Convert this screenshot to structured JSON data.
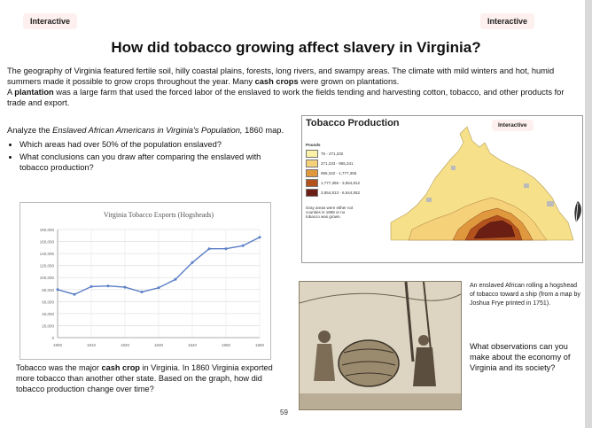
{
  "badges": {
    "top_left": "Interactive",
    "top_right": "Interactive",
    "map": "Interactive"
  },
  "title": "How did tobacco growing affect slavery in Virginia?",
  "intro": {
    "line1": "The geography of Virginia featured fertile soil, hilly coastal plains, forests, long rivers, and swampy areas.  The climate with mild winters and hot, humid summers made it possible to grow crops throughout the year.  Many ",
    "cash_crops": "cash crops",
    "line1_end": " were grown on plantations.",
    "a": "A ",
    "plantation": "plantation",
    "line2": " was a large farm that used the forced labor of the enslaved to work the fields tending and harvesting cotton, tobacco, and other products for trade and export."
  },
  "analyze": {
    "lead": "Analyze the ",
    "map_name": "Enslaved African Americans in Virginia's Population,",
    "lead_end": " 1860 map.",
    "questions": [
      "Which areas had over 50% of the population enslaved?",
      "What conclusions can you draw after comparing the enslaved with tobacco production?"
    ]
  },
  "chart_data": {
    "type": "line",
    "title": "Virginia Tobacco Exports (Hogsheads)",
    "x": [
      1800,
      1805,
      1810,
      1815,
      1820,
      1825,
      1830,
      1835,
      1840,
      1845,
      1850,
      1855,
      1860
    ],
    "values": [
      80000,
      72000,
      85000,
      86000,
      84000,
      76000,
      83000,
      97000,
      125000,
      148000,
      148000,
      153000,
      167000
    ],
    "xticks": [
      "1800",
      "1810",
      "1820",
      "1830",
      "1840",
      "1850",
      "1860"
    ],
    "yticks": [
      "0",
      "20,000",
      "40,000",
      "60,000",
      "80,000",
      "100,000",
      "120,000",
      "140,000",
      "160,000",
      "180,000"
    ],
    "ylim": [
      0,
      180000
    ],
    "grid": true,
    "color": "#5b7fc7"
  },
  "caption": {
    "a": "Tobacco was the major ",
    "b": "cash crop",
    "c": " in Virginia. In 1860 Virginia exported more tobacco than another other state. Based on the graph, how did tobacco production change over time?"
  },
  "page_number": "59",
  "map": {
    "title": "Tobacco Production",
    "legend_title": "Pounds",
    "legend": [
      {
        "label": "75 - 271,232",
        "color": "#fbf2a8"
      },
      {
        "label": "271,233 - 955,341",
        "color": "#f5d27a"
      },
      {
        "label": "955,342 - 1,777,355",
        "color": "#e0983e"
      },
      {
        "label": "1,777,356 - 3,554,812",
        "color": "#b4521e"
      },
      {
        "label": "3,554,813 - 6,544,552",
        "color": "#6b1f14"
      }
    ],
    "note": "Gray areas were either not counties in 1868 or no tobacco was grown."
  },
  "side": {
    "caption": "An enslaved African rolling a hogshead of tobacco toward a ship (from a map by Joshua Frye printed in 1751).",
    "question": "What observations can you make about the economy of Virginia and its society?"
  }
}
